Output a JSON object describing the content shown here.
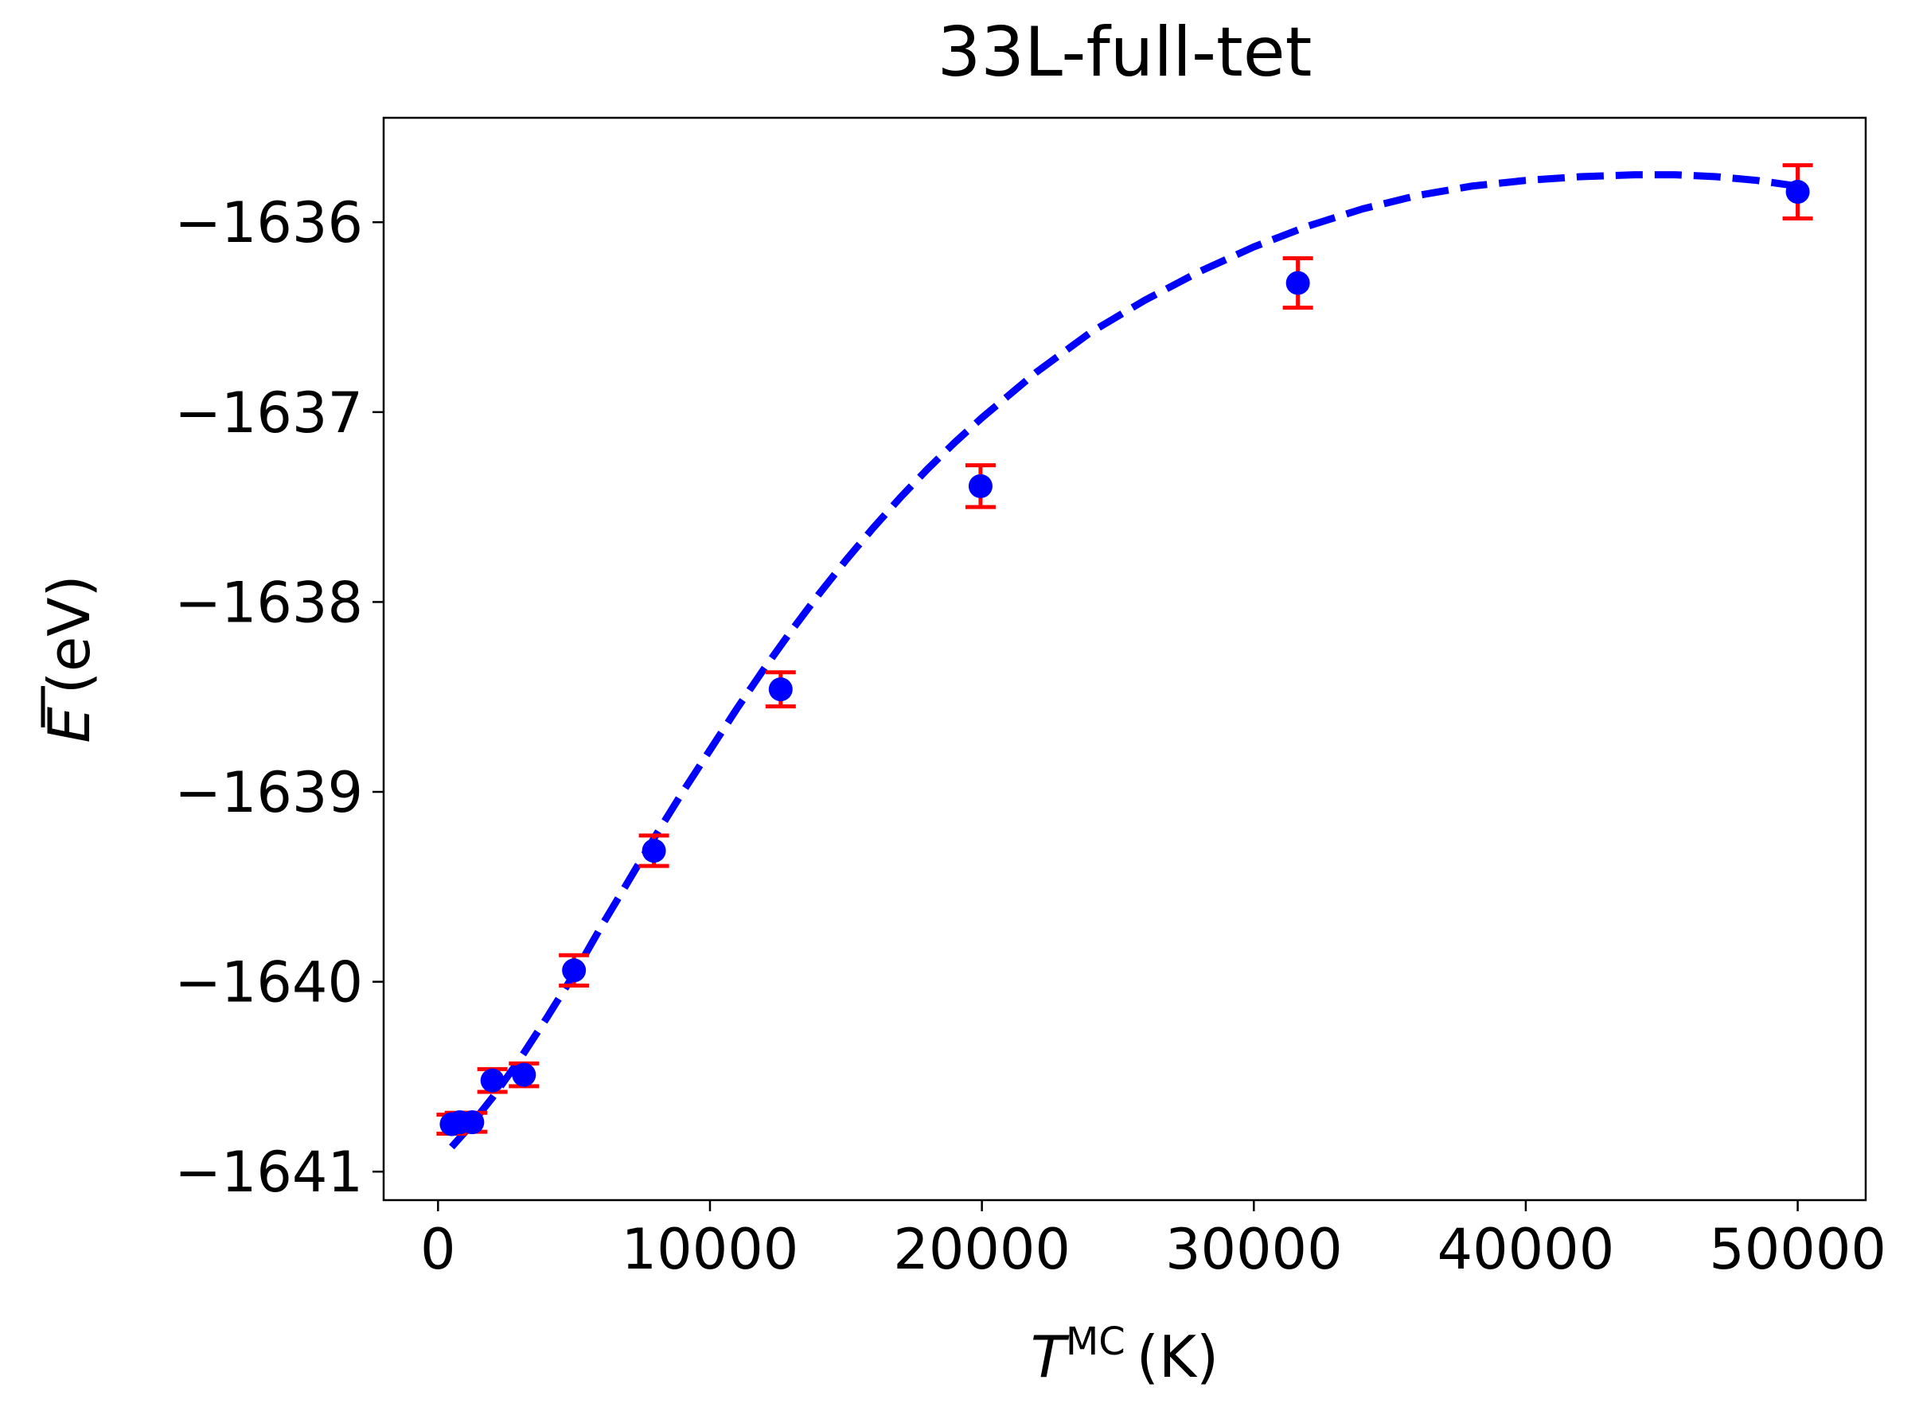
{
  "chart_data": {
    "type": "scatter",
    "title": "33L-full-tet",
    "xlabel": {
      "symbol": "T",
      "superscript": "MC",
      "unit": "(K)"
    },
    "ylabel": {
      "symbol": "E",
      "unit": "(eV)"
    },
    "xlim": [
      -2000,
      52500
    ],
    "ylim": [
      -1641.15,
      -1635.45
    ],
    "xticks": [
      0,
      10000,
      20000,
      30000,
      40000,
      50000
    ],
    "xtick_labels": [
      "0",
      "10000",
      "20000",
      "30000",
      "40000",
      "50000"
    ],
    "yticks": [
      -1641,
      -1640,
      -1639,
      -1638,
      -1637,
      -1636
    ],
    "ytick_labels": [
      "−1641",
      "−1640",
      "−1639",
      "−1638",
      "−1637",
      "−1636"
    ],
    "grid": false,
    "series": [
      {
        "kind": "errorbar",
        "x": [
          500,
          800,
          1260,
          2000,
          3160,
          5000,
          7940,
          12600,
          19950,
          31620,
          50000
        ],
        "y": [
          -1640.75,
          -1640.74,
          -1640.74,
          -1640.52,
          -1640.49,
          -1639.94,
          -1639.31,
          -1638.46,
          -1637.39,
          -1636.32,
          -1635.84
        ],
        "yerr": [
          0.05,
          0.05,
          0.05,
          0.06,
          0.06,
          0.08,
          0.08,
          0.09,
          0.11,
          0.13,
          0.14
        ],
        "marker_color": "#0000ff",
        "errorbar_color": "#ff0000"
      },
      {
        "kind": "fit-line",
        "style": "dashed",
        "color": "#0000ff",
        "x": [
          500,
          1000,
          2000,
          3000,
          4000,
          5000,
          6000,
          7000,
          8000,
          9000,
          10000,
          11000,
          12000,
          13000,
          14000,
          15000,
          16000,
          17000,
          18000,
          19000,
          20000,
          22000,
          24000,
          26000,
          28000,
          30000,
          32000,
          34000,
          36000,
          38000,
          40000,
          42000,
          44000,
          45500,
          47000,
          48500,
          50000
        ],
        "y": [
          -1640.87,
          -1640.79,
          -1640.61,
          -1640.41,
          -1640.19,
          -1639.96,
          -1639.71,
          -1639.47,
          -1639.23,
          -1639.0,
          -1638.78,
          -1638.56,
          -1638.35,
          -1638.15,
          -1637.96,
          -1637.78,
          -1637.61,
          -1637.45,
          -1637.3,
          -1637.16,
          -1637.03,
          -1636.79,
          -1636.58,
          -1636.41,
          -1636.26,
          -1636.13,
          -1636.02,
          -1635.93,
          -1635.86,
          -1635.81,
          -1635.78,
          -1635.76,
          -1635.75,
          -1635.75,
          -1635.76,
          -1635.78,
          -1635.81
        ]
      }
    ]
  }
}
